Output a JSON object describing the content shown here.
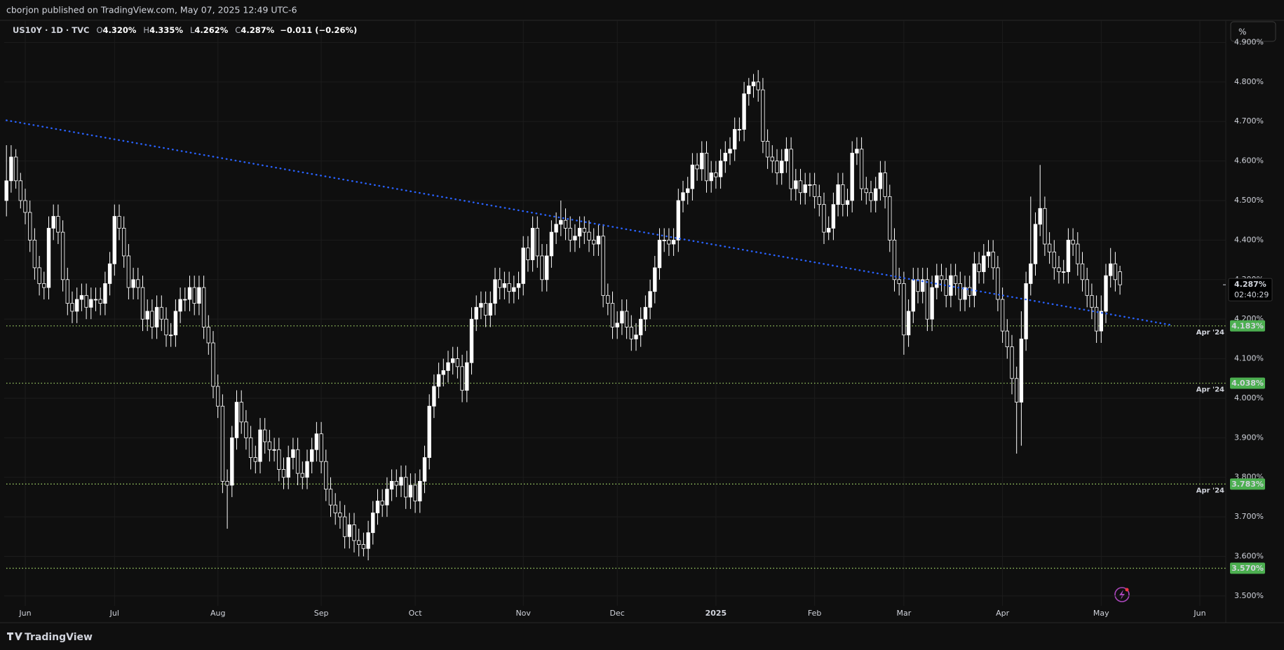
{
  "header": {
    "text": "cborjon published on TradingView.com, May 07, 2025 12:49 UTC-6"
  },
  "toolbar": {
    "scale_button": "%"
  },
  "footer": {
    "brand": "TradingView"
  },
  "chart_data": {
    "type": "candlestick",
    "legend": {
      "symbol": "US10Y · 1D · TVC",
      "items": [
        {
          "key": "O",
          "text": "4.320%"
        },
        {
          "key": "H",
          "text": "4.335%"
        },
        {
          "key": "L",
          "text": "4.262%"
        },
        {
          "key": "C",
          "text": "4.287%"
        }
      ],
      "change": "−0.011 (−0.26%)"
    },
    "categories": [
      null,
      null,
      null,
      null,
      "Jun",
      null,
      null,
      null,
      null,
      null,
      null,
      null,
      null,
      null,
      null,
      null,
      null,
      null,
      null,
      null,
      null,
      null,
      null,
      "Jul",
      null,
      null,
      null,
      null,
      null,
      null,
      null,
      null,
      null,
      null,
      null,
      null,
      null,
      null,
      null,
      null,
      null,
      null,
      null,
      null,
      null,
      "Aug",
      null,
      null,
      null,
      null,
      null,
      null,
      null,
      null,
      null,
      null,
      null,
      null,
      null,
      null,
      null,
      null,
      null,
      null,
      null,
      null,
      null,
      "Sep",
      null,
      null,
      null,
      null,
      null,
      null,
      null,
      null,
      null,
      null,
      null,
      null,
      null,
      null,
      null,
      null,
      null,
      null,
      null,
      "Oct",
      null,
      null,
      null,
      null,
      null,
      null,
      null,
      null,
      null,
      null,
      null,
      null,
      null,
      null,
      null,
      null,
      null,
      null,
      null,
      null,
      null,
      null,
      "Nov",
      null,
      null,
      null,
      null,
      null,
      null,
      null,
      null,
      null,
      null,
      null,
      null,
      null,
      null,
      null,
      null,
      null,
      null,
      null,
      "Dec",
      null,
      null,
      null,
      null,
      null,
      null,
      null,
      null,
      null,
      null,
      null,
      null,
      null,
      null,
      null,
      null,
      null,
      null,
      null,
      null,
      "2025",
      null,
      null,
      null,
      null,
      null,
      null,
      null,
      null,
      null,
      null,
      null,
      null,
      null,
      null,
      null,
      null,
      null,
      null,
      null,
      null,
      "Feb",
      null,
      null,
      null,
      null,
      null,
      null,
      null,
      null,
      null,
      null,
      null,
      null,
      null,
      null,
      null,
      null,
      null,
      null,
      "Mar",
      null,
      null,
      null,
      null,
      null,
      null,
      null,
      null,
      null,
      null,
      null,
      null,
      null,
      null,
      null,
      null,
      null,
      null,
      null,
      null,
      "Apr",
      null,
      null,
      null,
      null,
      null,
      null,
      null,
      null,
      null,
      null,
      null,
      null,
      null,
      null,
      null,
      null,
      null,
      null,
      null,
      null,
      "May",
      null,
      null,
      null,
      null,
      null,
      null,
      null,
      null,
      null,
      null,
      null,
      null,
      null,
      null,
      null,
      null,
      null,
      null,
      null,
      null,
      "Jun",
      null,
      null,
      null,
      null,
      null
    ],
    "open": [
      4.5,
      4.55,
      4.61,
      4.55,
      4.5,
      4.47,
      4.4,
      4.33,
      4.29,
      4.28,
      4.43,
      4.46,
      4.42,
      4.3,
      4.24,
      4.22,
      4.25,
      4.26,
      4.23,
      4.25,
      4.25,
      4.24,
      4.29,
      4.34,
      4.46,
      4.43,
      4.36,
      4.28,
      4.3,
      4.28,
      4.2,
      4.22,
      4.18,
      4.23,
      4.2,
      4.16,
      4.16,
      4.22,
      4.25,
      4.25,
      4.28,
      4.24,
      4.28,
      4.18,
      4.14,
      4.03,
      3.98,
      3.79,
      3.78,
      3.9,
      3.99,
      3.94,
      3.9,
      3.85,
      3.84,
      3.92,
      3.89,
      3.87,
      3.87,
      3.82,
      3.8,
      3.85,
      3.87,
      3.81,
      3.8,
      3.84,
      3.87,
      3.91,
      3.84,
      3.77,
      3.73,
      3.71,
      3.7,
      3.65,
      3.68,
      3.64,
      3.63,
      3.62,
      3.66,
      3.71,
      3.74,
      3.73,
      3.77,
      3.79,
      3.78,
      3.8,
      3.75,
      3.78,
      3.74,
      3.79,
      3.85,
      3.98,
      4.03,
      4.06,
      4.07,
      4.09,
      4.1,
      4.08,
      4.02,
      4.09,
      4.2,
      4.23,
      4.24,
      4.21,
      4.24,
      4.3,
      4.28,
      4.29,
      4.27,
      4.28,
      4.29,
      4.38,
      4.35,
      4.43,
      4.36,
      4.3,
      4.36,
      4.42,
      4.44,
      4.45,
      4.43,
      4.4,
      4.41,
      4.43,
      4.42,
      4.4,
      4.39,
      4.41,
      4.26,
      4.24,
      4.18,
      4.19,
      4.22,
      4.18,
      4.15,
      4.16,
      4.2,
      4.23,
      4.27,
      4.33,
      4.4,
      4.4,
      4.39,
      4.4,
      4.5,
      4.52,
      4.53,
      4.59,
      4.58,
      4.62,
      4.55,
      4.57,
      4.56,
      4.6,
      4.62,
      4.63,
      4.68,
      4.68,
      4.77,
      4.79,
      4.8,
      4.78,
      4.65,
      4.61,
      4.6,
      4.57,
      4.6,
      4.63,
      4.53,
      4.55,
      4.52,
      4.54,
      4.54,
      4.51,
      4.49,
      4.42,
      4.43,
      4.49,
      4.54,
      4.49,
      4.5,
      4.62,
      4.63,
      4.53,
      4.52,
      4.5,
      4.53,
      4.57,
      4.51,
      4.4,
      4.3,
      4.29,
      4.16,
      4.22,
      4.3,
      4.27,
      4.3,
      4.2,
      4.28,
      4.31,
      4.3,
      4.26,
      4.31,
      4.29,
      4.25,
      4.28,
      4.26,
      4.34,
      4.32,
      4.36,
      4.37,
      4.33,
      4.25,
      4.17,
      4.13,
      4.05,
      3.99,
      4.15,
      4.29,
      4.34,
      4.44,
      4.48,
      4.39,
      4.37,
      4.33,
      4.32,
      4.32,
      4.4,
      4.39,
      4.34,
      4.3,
      4.26,
      4.23,
      4.17,
      4.22,
      4.31,
      4.34,
      4.32,
      null,
      null,
      null,
      null,
      null,
      null,
      null,
      null,
      null,
      null,
      null,
      null,
      null,
      null,
      null,
      null,
      null,
      null,
      null,
      null,
      null,
      null
    ],
    "high": [
      4.64,
      4.64,
      4.63,
      4.57,
      4.53,
      4.5,
      4.43,
      4.36,
      4.32,
      4.46,
      4.49,
      4.49,
      4.45,
      4.33,
      4.27,
      4.28,
      4.29,
      4.29,
      4.28,
      4.28,
      4.28,
      4.32,
      4.37,
      4.49,
      4.49,
      4.46,
      4.39,
      4.33,
      4.33,
      4.31,
      4.25,
      4.25,
      4.26,
      4.26,
      4.23,
      4.19,
      4.25,
      4.28,
      4.28,
      4.31,
      4.31,
      4.31,
      4.31,
      4.21,
      4.17,
      4.06,
      4.01,
      3.82,
      3.93,
      4.02,
      4.02,
      3.97,
      3.93,
      3.88,
      3.95,
      3.95,
      3.92,
      3.9,
      3.9,
      3.85,
      3.88,
      3.9,
      3.9,
      3.84,
      3.87,
      3.9,
      3.94,
      3.94,
      3.87,
      3.8,
      3.76,
      3.74,
      3.73,
      3.71,
      3.71,
      3.67,
      3.66,
      3.69,
      3.74,
      3.77,
      3.77,
      3.8,
      3.82,
      3.82,
      3.83,
      3.83,
      3.81,
      3.81,
      3.82,
      3.88,
      4.01,
      4.06,
      4.09,
      4.1,
      4.12,
      4.13,
      4.13,
      4.11,
      4.12,
      4.23,
      4.26,
      4.27,
      4.27,
      4.27,
      4.33,
      4.33,
      4.32,
      4.32,
      4.31,
      4.32,
      4.41,
      4.41,
      4.46,
      4.46,
      4.39,
      4.39,
      4.45,
      4.47,
      4.5,
      4.48,
      4.46,
      4.44,
      4.46,
      4.46,
      4.45,
      4.43,
      4.44,
      4.44,
      4.29,
      4.27,
      4.22,
      4.25,
      4.25,
      4.21,
      4.19,
      4.23,
      4.26,
      4.3,
      4.36,
      4.43,
      4.43,
      4.43,
      4.43,
      4.53,
      4.55,
      4.56,
      4.62,
      4.62,
      4.65,
      4.65,
      4.6,
      4.6,
      4.63,
      4.65,
      4.66,
      4.71,
      4.71,
      4.8,
      4.81,
      4.82,
      4.83,
      4.81,
      4.68,
      4.64,
      4.63,
      4.63,
      4.66,
      4.66,
      4.58,
      4.58,
      4.57,
      4.57,
      4.57,
      4.54,
      4.52,
      4.46,
      4.52,
      4.57,
      4.57,
      4.53,
      4.65,
      4.66,
      4.66,
      4.56,
      4.55,
      4.56,
      4.6,
      4.6,
      4.54,
      4.43,
      4.33,
      4.32,
      4.25,
      4.33,
      4.33,
      4.33,
      4.33,
      4.31,
      4.34,
      4.34,
      4.33,
      4.34,
      4.34,
      4.32,
      4.31,
      4.31,
      4.37,
      4.37,
      4.39,
      4.4,
      4.4,
      4.36,
      4.28,
      4.2,
      4.16,
      4.08,
      4.22,
      4.32,
      4.51,
      4.47,
      4.59,
      4.51,
      4.42,
      4.4,
      4.36,
      4.35,
      4.43,
      4.43,
      4.42,
      4.37,
      4.33,
      4.29,
      4.26,
      4.26,
      4.34,
      4.38,
      4.37,
      4.335,
      null,
      null,
      null,
      null,
      null,
      null,
      null,
      null,
      null,
      null,
      null,
      null,
      null,
      null,
      null,
      null,
      null,
      null,
      null,
      null,
      null,
      null
    ],
    "low": [
      4.46,
      4.52,
      4.53,
      4.48,
      4.44,
      4.37,
      4.3,
      4.26,
      4.25,
      4.25,
      4.4,
      4.39,
      4.27,
      4.21,
      4.19,
      4.19,
      4.22,
      4.2,
      4.2,
      4.22,
      4.21,
      4.21,
      4.26,
      4.31,
      4.4,
      4.33,
      4.25,
      4.25,
      4.25,
      4.17,
      4.17,
      4.15,
      4.15,
      4.17,
      4.13,
      4.13,
      4.13,
      4.19,
      4.22,
      4.22,
      4.21,
      4.21,
      4.15,
      4.11,
      4.0,
      3.95,
      3.76,
      3.67,
      3.75,
      3.87,
      3.91,
      3.87,
      3.82,
      3.81,
      3.81,
      3.86,
      3.84,
      3.84,
      3.79,
      3.77,
      3.77,
      3.82,
      3.78,
      3.77,
      3.77,
      3.81,
      3.84,
      3.81,
      3.74,
      3.7,
      3.68,
      3.67,
      3.62,
      3.62,
      3.61,
      3.6,
      3.6,
      3.59,
      3.63,
      3.68,
      3.7,
      3.7,
      3.74,
      3.75,
      3.75,
      3.72,
      3.72,
      3.71,
      3.71,
      3.76,
      3.82,
      3.95,
      4.0,
      4.03,
      4.04,
      4.06,
      4.05,
      3.99,
      3.99,
      4.06,
      4.17,
      4.2,
      4.18,
      4.18,
      4.21,
      4.25,
      4.25,
      4.24,
      4.24,
      4.25,
      4.26,
      4.32,
      4.32,
      4.33,
      4.27,
      4.27,
      4.33,
      4.39,
      4.41,
      4.4,
      4.37,
      4.37,
      4.38,
      4.39,
      4.37,
      4.36,
      4.36,
      4.23,
      4.21,
      4.15,
      4.15,
      4.16,
      4.15,
      4.12,
      4.12,
      4.13,
      4.17,
      4.2,
      4.24,
      4.3,
      4.37,
      4.36,
      4.36,
      4.37,
      4.47,
      4.49,
      4.5,
      4.55,
      4.55,
      4.52,
      4.52,
      4.53,
      4.53,
      4.57,
      4.59,
      4.6,
      4.65,
      4.65,
      4.74,
      4.76,
      4.75,
      4.62,
      4.58,
      4.57,
      4.54,
      4.54,
      4.57,
      4.5,
      4.5,
      4.49,
      4.49,
      4.51,
      4.48,
      4.46,
      4.39,
      4.4,
      4.4,
      4.46,
      4.46,
      4.46,
      4.47,
      4.59,
      4.5,
      4.49,
      4.47,
      4.47,
      4.5,
      4.48,
      4.37,
      4.27,
      4.26,
      4.11,
      4.13,
      4.19,
      4.24,
      4.24,
      4.17,
      4.17,
      4.25,
      4.27,
      4.23,
      4.23,
      4.26,
      4.22,
      4.22,
      4.23,
      4.23,
      4.29,
      4.29,
      4.33,
      4.3,
      4.22,
      4.14,
      4.1,
      4.01,
      3.86,
      3.88,
      4.12,
      4.26,
      4.31,
      4.41,
      4.36,
      4.34,
      4.3,
      4.29,
      4.29,
      4.29,
      4.36,
      4.31,
      4.27,
      4.23,
      4.2,
      4.14,
      4.14,
      4.19,
      4.28,
      4.27,
      4.262,
      null,
      null,
      null,
      null,
      null,
      null,
      null,
      null,
      null,
      null,
      null,
      null,
      null,
      null,
      null,
      null,
      null,
      null,
      null,
      null,
      null,
      null
    ],
    "close": [
      4.55,
      4.61,
      4.55,
      4.5,
      4.47,
      4.4,
      4.33,
      4.29,
      4.28,
      4.43,
      4.46,
      4.42,
      4.3,
      4.24,
      4.22,
      4.25,
      4.26,
      4.23,
      4.25,
      4.25,
      4.24,
      4.29,
      4.34,
      4.46,
      4.43,
      4.36,
      4.28,
      4.3,
      4.28,
      4.2,
      4.22,
      4.18,
      4.23,
      4.2,
      4.16,
      4.16,
      4.22,
      4.25,
      4.25,
      4.28,
      4.24,
      4.28,
      4.18,
      4.14,
      4.03,
      3.98,
      3.79,
      3.78,
      3.9,
      3.99,
      3.94,
      3.9,
      3.85,
      3.84,
      3.92,
      3.89,
      3.87,
      3.87,
      3.82,
      3.8,
      3.85,
      3.87,
      3.81,
      3.8,
      3.84,
      3.87,
      3.91,
      3.84,
      3.77,
      3.73,
      3.71,
      3.7,
      3.65,
      3.68,
      3.64,
      3.63,
      3.62,
      3.66,
      3.71,
      3.74,
      3.73,
      3.77,
      3.79,
      3.78,
      3.8,
      3.75,
      3.78,
      3.74,
      3.79,
      3.85,
      3.98,
      4.03,
      4.06,
      4.07,
      4.09,
      4.1,
      4.08,
      4.02,
      4.09,
      4.2,
      4.23,
      4.24,
      4.21,
      4.24,
      4.3,
      4.28,
      4.29,
      4.27,
      4.28,
      4.29,
      4.38,
      4.35,
      4.43,
      4.36,
      4.3,
      4.36,
      4.42,
      4.44,
      4.45,
      4.43,
      4.4,
      4.41,
      4.43,
      4.42,
      4.4,
      4.39,
      4.41,
      4.26,
      4.24,
      4.18,
      4.19,
      4.22,
      4.18,
      4.15,
      4.16,
      4.2,
      4.23,
      4.27,
      4.33,
      4.4,
      4.4,
      4.39,
      4.4,
      4.5,
      4.52,
      4.53,
      4.59,
      4.58,
      4.62,
      4.55,
      4.57,
      4.56,
      4.6,
      4.62,
      4.63,
      4.68,
      4.68,
      4.77,
      4.79,
      4.8,
      4.78,
      4.65,
      4.61,
      4.6,
      4.57,
      4.6,
      4.63,
      4.53,
      4.55,
      4.52,
      4.54,
      4.54,
      4.51,
      4.49,
      4.42,
      4.43,
      4.49,
      4.54,
      4.49,
      4.5,
      4.62,
      4.63,
      4.53,
      4.52,
      4.5,
      4.53,
      4.57,
      4.51,
      4.4,
      4.3,
      4.29,
      4.16,
      4.22,
      4.3,
      4.27,
      4.3,
      4.2,
      4.28,
      4.31,
      4.3,
      4.26,
      4.31,
      4.29,
      4.25,
      4.28,
      4.26,
      4.34,
      4.32,
      4.36,
      4.37,
      4.33,
      4.25,
      4.17,
      4.13,
      4.05,
      3.99,
      4.15,
      4.29,
      4.34,
      4.44,
      4.48,
      4.39,
      4.37,
      4.33,
      4.32,
      4.32,
      4.4,
      4.39,
      4.34,
      4.3,
      4.26,
      4.23,
      4.17,
      4.22,
      4.31,
      4.34,
      4.3,
      4.287,
      null,
      null,
      null,
      null,
      null,
      null,
      null,
      null,
      null,
      null,
      null,
      null,
      null,
      null,
      null,
      null,
      null,
      null,
      null,
      null,
      null,
      null
    ],
    "up_color": "#ffffff",
    "down_color": "#0f0f0f",
    "wick_color": "#ffffff",
    "ylim": [
      3.475,
      4.954
    ],
    "yticks": [
      {
        "value": 3.5,
        "label": "3.500%"
      },
      {
        "value": 3.6,
        "label": "3.600%"
      },
      {
        "value": 3.7,
        "label": "3.700%"
      },
      {
        "value": 3.8,
        "label": "3.800%"
      },
      {
        "value": 3.9,
        "label": "3.900%"
      },
      {
        "value": 4.0,
        "label": "4.000%"
      },
      {
        "value": 4.1,
        "label": "4.100%"
      },
      {
        "value": 4.2,
        "label": "4.200%"
      },
      {
        "value": 4.3,
        "label": "4.300%"
      },
      {
        "value": 4.4,
        "label": "4.400%"
      },
      {
        "value": 4.5,
        "label": "4.500%"
      },
      {
        "value": 4.6,
        "label": "4.600%"
      },
      {
        "value": 4.7,
        "label": "4.700%"
      },
      {
        "value": 4.8,
        "label": "4.800%"
      },
      {
        "value": 4.9,
        "label": "4.900%"
      }
    ],
    "grid": true,
    "level_color": "#9ccc65",
    "levels": [
      {
        "value": 4.183,
        "label": "4.183%",
        "note": "Apr '24"
      },
      {
        "value": 4.038,
        "label": "4.038%",
        "note": "Apr '24"
      },
      {
        "value": 3.783,
        "label": "3.783%",
        "note": "Apr '24"
      },
      {
        "value": 3.57,
        "label": "3.570%"
      }
    ],
    "trendline": {
      "x": [
        0,
        248
      ],
      "y": [
        4.703,
        4.185
      ],
      "color": "#2962ff"
    },
    "last_price": {
      "value": 4.287,
      "label": "4.287%",
      "countdown": "02:40:29"
    }
  }
}
